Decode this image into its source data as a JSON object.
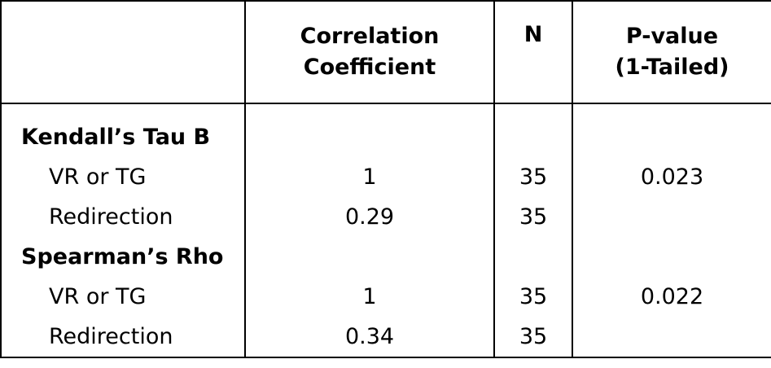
{
  "table": {
    "headers": [
      {
        "line1": "",
        "line2": ""
      },
      {
        "line1": "Correlation",
        "line2": "Coefficient"
      },
      {
        "line1": "N",
        "line2": ""
      },
      {
        "line1": "P-value",
        "line2": "(1-Tailed)"
      }
    ],
    "sections": [
      {
        "title": "Kendall’s Tau B",
        "rows": [
          {
            "label": "VR or TG",
            "coefficient": "1",
            "n": "35",
            "p_value": "0.023"
          },
          {
            "label": "Redirection",
            "coefficient": "0.29",
            "n": "35",
            "p_value": ""
          }
        ]
      },
      {
        "title": "Spearman’s Rho",
        "rows": [
          {
            "label": "VR or TG",
            "coefficient": "1",
            "n": "35",
            "p_value": "0.022"
          },
          {
            "label": "Redirection",
            "coefficient": "0.34",
            "n": "35",
            "p_value": ""
          }
        ]
      }
    ]
  }
}
